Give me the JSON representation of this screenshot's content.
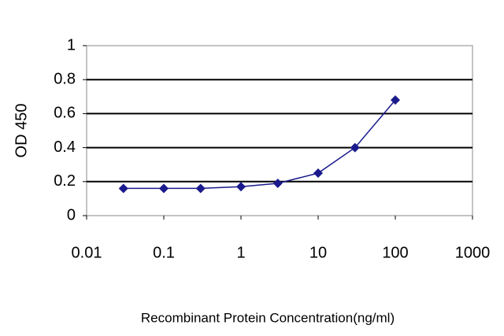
{
  "chart_data": {
    "type": "line",
    "x_label": "Recombinant Protein Concentration(ng/ml)",
    "y_label": "OD 450",
    "x": [
      0.03,
      0.1,
      0.3,
      1,
      3,
      10,
      30,
      100
    ],
    "series": [
      {
        "color": "#1a1a8c",
        "values": [
          0.16,
          0.16,
          0.16,
          0.17,
          0.19,
          0.25,
          0.4,
          0.68
        ]
      }
    ],
    "xscale": "log",
    "xlim": [
      0.01,
      1000
    ],
    "xticks": [
      0.01,
      0.1,
      1,
      10,
      100,
      1000
    ],
    "ylim": [
      0,
      1
    ],
    "yticks": [
      0,
      0.2,
      0.4,
      0.6,
      0.8,
      1
    ],
    "grid": true
  }
}
